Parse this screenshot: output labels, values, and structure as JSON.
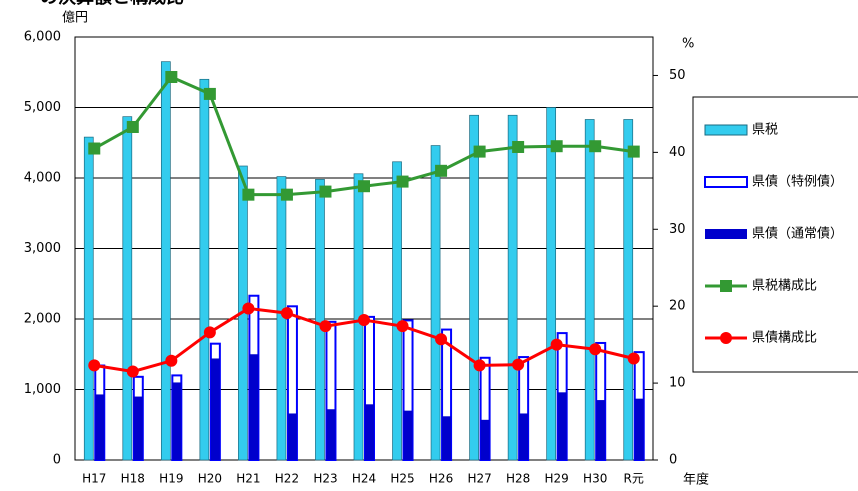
{
  "chart_data": {
    "type": "bar",
    "title": "の決算額と構成比",
    "y_label": "億円",
    "y2_label": "%",
    "x_label": "年度",
    "categories": [
      "H17",
      "H18",
      "H19",
      "H20",
      "H21",
      "H22",
      "H23",
      "H24",
      "H25",
      "H26",
      "H27",
      "H28",
      "H29",
      "H30",
      "R元"
    ],
    "ylim": [
      0,
      6000
    ],
    "yticks": [
      {
        "value": 0,
        "label": "0"
      },
      {
        "value": 1000,
        "label": "1,000"
      },
      {
        "value": 2000,
        "label": "2,000"
      },
      {
        "value": 3000,
        "label": "3,000"
      },
      {
        "value": 4000,
        "label": "4,000"
      },
      {
        "value": 5000,
        "label": "5,000"
      },
      {
        "value": 6000,
        "label": "6,000"
      }
    ],
    "y2lim": [
      0,
      55
    ],
    "y2ticks": [
      0,
      10,
      20,
      30,
      40,
      50
    ],
    "grid": true,
    "legend": "right",
    "series": [
      {
        "name": "県税",
        "type": "bar",
        "bar_slot": 0,
        "color": "#33ccee",
        "values": [
          4580,
          4870,
          5650,
          5400,
          4170,
          4020,
          3980,
          4060,
          4230,
          4460,
          4890,
          4890,
          5000,
          4830,
          4830
        ]
      },
      {
        "name": "県債（特例債）",
        "type": "bar",
        "bar_slot": 1,
        "stacked": true,
        "color": "#0000ff",
        "values": [
          410,
          280,
          100,
          210,
          830,
          1520,
          1240,
          1240,
          1280,
          1230,
          880,
          800,
          840,
          810,
          660
        ]
      },
      {
        "name": "県債（通常債）",
        "type": "bar",
        "bar_slot": 1,
        "color": "#0000cc",
        "values": [
          930,
          900,
          1100,
          1440,
          1500,
          660,
          720,
          790,
          700,
          620,
          570,
          660,
          960,
          850,
          870
        ]
      },
      {
        "name": "県税構成比",
        "type": "line",
        "marker": "square",
        "axis": "y2",
        "color": "#339933",
        "values": [
          40.5,
          43.3,
          49.8,
          47.6,
          34.5,
          34.5,
          34.9,
          35.6,
          36.2,
          37.6,
          40.1,
          40.7,
          40.8,
          40.8,
          40.1
        ]
      },
      {
        "name": "県債構成比",
        "type": "line",
        "marker": "circle",
        "axis": "y2",
        "color": "#ff0000",
        "values": [
          12.3,
          11.5,
          12.9,
          16.6,
          19.7,
          19.1,
          17.4,
          18.2,
          17.4,
          15.7,
          12.3,
          12.4,
          15.0,
          14.4,
          13.2
        ]
      }
    ]
  }
}
